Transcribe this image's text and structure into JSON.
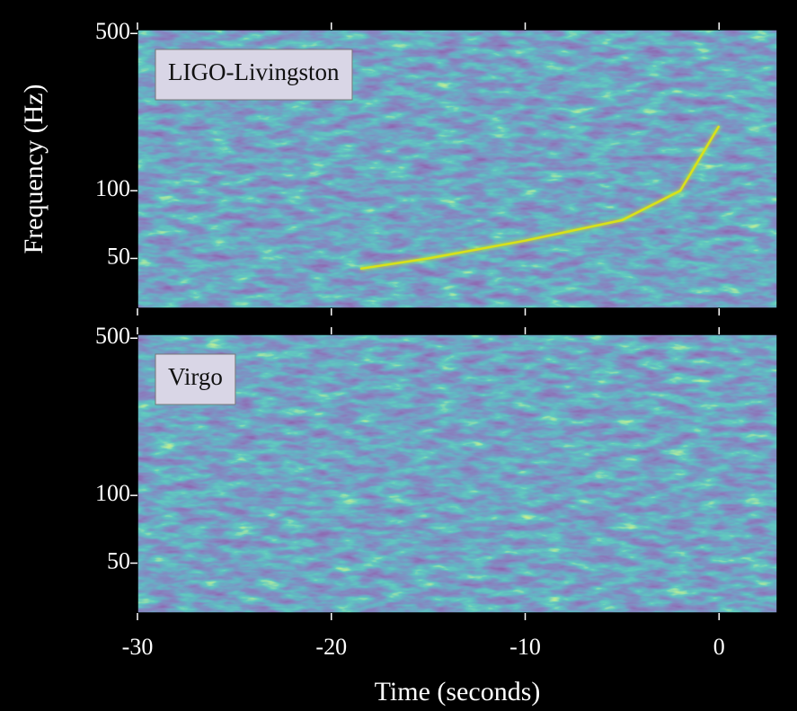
{
  "chart_data": [
    {
      "type": "spectrogram",
      "label": "LIGO-Livingston",
      "ylabel": "Frequency (Hz)",
      "log_y": true,
      "xlim": [
        -30,
        3
      ],
      "xticks": [
        -30,
        -20,
        -10,
        0
      ],
      "ylim": [
        30,
        520
      ],
      "yticks": [
        50,
        100,
        500
      ],
      "x": [
        -18.5,
        -15,
        -10,
        -5,
        -2,
        0
      ],
      "values": [
        45,
        50,
        60,
        74,
        100,
        194
      ],
      "color": "#d8e219"
    },
    {
      "type": "spectrogram",
      "label": "Virgo",
      "xlabel": "Time (seconds)",
      "log_y": true,
      "xlim": [
        -30,
        3
      ],
      "xticks": [
        -30,
        -20,
        -10,
        0
      ],
      "ylim": [
        30,
        520
      ],
      "yticks": [
        50,
        100,
        500
      ]
    }
  ]
}
